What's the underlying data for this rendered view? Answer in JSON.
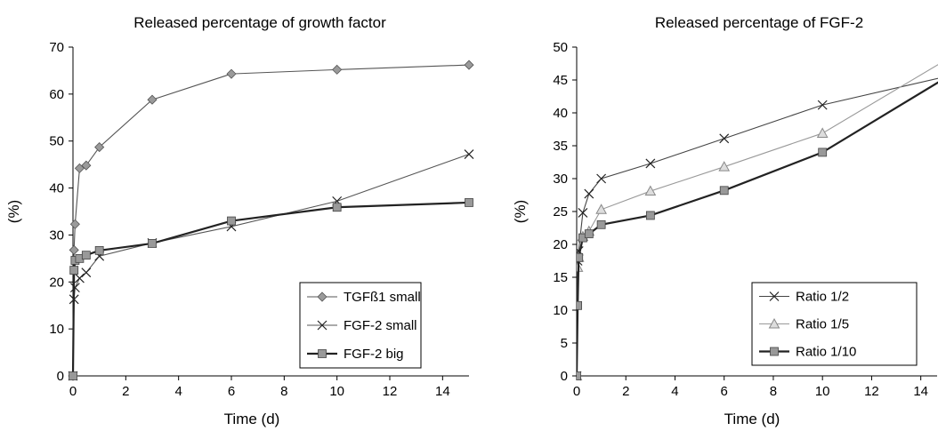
{
  "chart_data": [
    {
      "type": "line",
      "title": "Released percentage of growth factor",
      "xlabel": "Time (d)",
      "ylabel": "(%)",
      "xlim": [
        0,
        15
      ],
      "ylim": [
        0,
        70
      ],
      "x_ticks": [
        0,
        2,
        4,
        6,
        8,
        10,
        12,
        14
      ],
      "y_ticks": [
        0,
        10,
        20,
        30,
        40,
        50,
        60,
        70
      ],
      "grid": false,
      "legend_position": "bottom-right",
      "series": [
        {
          "name": "TGFß1 small",
          "marker": "diamond",
          "color": "#9a9a9a",
          "line_color": "#555555",
          "x": [
            0,
            0.04,
            0.08,
            0.25,
            0.5,
            1,
            3,
            6,
            10,
            15
          ],
          "y": [
            0,
            26.8,
            32.3,
            44.2,
            44.8,
            48.7,
            58.8,
            64.3,
            65.2,
            66.2
          ]
        },
        {
          "name": "FGF-2 small",
          "marker": "x",
          "color": "#222222",
          "line_color": "#555555",
          "x": [
            0,
            0.04,
            0.08,
            0.25,
            0.5,
            1,
            3,
            6,
            10,
            15
          ],
          "y": [
            0,
            16.3,
            18.8,
            20.8,
            22,
            25.5,
            28.3,
            31.8,
            37.2,
            47.2
          ]
        },
        {
          "name": "FGF-2 big",
          "marker": "square",
          "color": "#999999",
          "line_color": "#222222",
          "x": [
            0,
            0.04,
            0.08,
            0.25,
            0.5,
            1,
            3,
            6,
            10,
            15
          ],
          "y": [
            0,
            22.5,
            24.6,
            25,
            25.7,
            26.7,
            28.2,
            33,
            35.9,
            36.9
          ]
        }
      ]
    },
    {
      "type": "line",
      "title": "Released percentage of FGF-2",
      "xlabel": "Time (d)",
      "ylabel": "(%)",
      "xlim": [
        0,
        14.7
      ],
      "ylim": [
        0,
        50
      ],
      "x_ticks": [
        0,
        2,
        4,
        6,
        8,
        10,
        12,
        14
      ],
      "y_ticks": [
        0,
        5,
        10,
        15,
        20,
        25,
        30,
        35,
        40,
        45,
        50
      ],
      "grid": false,
      "legend_position": "bottom-right",
      "series": [
        {
          "name": "Ratio 1/2",
          "marker": "x",
          "color": "#222222",
          "line_color": "#444444",
          "x": [
            0,
            0.04,
            0.08,
            0.25,
            0.5,
            1,
            3,
            6,
            10,
            15
          ],
          "y": [
            0,
            17.5,
            19,
            24.8,
            27.7,
            30,
            32.3,
            36.1,
            41.2,
            45.5
          ]
        },
        {
          "name": "Ratio 1/5",
          "marker": "triangle",
          "color": "#aaaaaa",
          "line_color": "#999999",
          "x": [
            0,
            0.04,
            0.08,
            0.25,
            0.5,
            1,
            3,
            6,
            10,
            15
          ],
          "y": [
            0,
            16.5,
            18,
            21.2,
            22,
            25.3,
            28.1,
            31.8,
            36.9,
            48
          ]
        },
        {
          "name": "Ratio 1/10",
          "marker": "square",
          "color": "#999999",
          "line_color": "#222222",
          "x": [
            0,
            0.04,
            0.08,
            0.25,
            0.5,
            1,
            3,
            6,
            10,
            15
          ],
          "y": [
            0,
            10.7,
            18,
            21,
            21.6,
            23,
            24.4,
            28.2,
            34,
            45.3
          ]
        }
      ]
    }
  ]
}
